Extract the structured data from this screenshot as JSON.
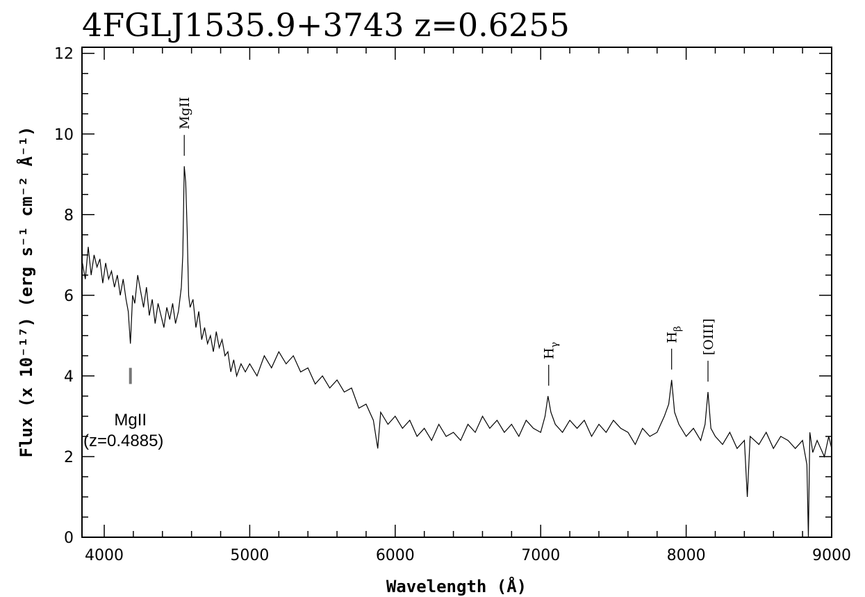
{
  "chart_data": {
    "type": "line",
    "title": "4FGLJ1535.9+3743 z=0.6255",
    "xlabel": "Wavelength (Å)",
    "ylabel": "Flux (x 10⁻¹⁷) (erg s⁻¹ cm⁻² Å⁻¹)",
    "color": "#000000",
    "x": [
      3850,
      3870,
      3890,
      3910,
      3930,
      3950,
      3970,
      3990,
      4010,
      4030,
      4050,
      4070,
      4090,
      4110,
      4130,
      4150,
      4165,
      4180,
      4195,
      4210,
      4230,
      4250,
      4270,
      4290,
      4310,
      4330,
      4350,
      4370,
      4390,
      4410,
      4430,
      4450,
      4470,
      4490,
      4510,
      4530,
      4540,
      4550,
      4560,
      4570,
      4580,
      4590,
      4610,
      4630,
      4650,
      4670,
      4690,
      4710,
      4730,
      4750,
      4770,
      4790,
      4810,
      4830,
      4850,
      4870,
      4890,
      4910,
      4940,
      4970,
      5000,
      5050,
      5100,
      5150,
      5200,
      5250,
      5300,
      5350,
      5400,
      5450,
      5500,
      5550,
      5600,
      5650,
      5700,
      5750,
      5800,
      5850,
      5880,
      5900,
      5950,
      6000,
      6050,
      6100,
      6150,
      6200,
      6250,
      6300,
      6350,
      6400,
      6450,
      6500,
      6550,
      6600,
      6650,
      6700,
      6750,
      6800,
      6850,
      6900,
      6950,
      7000,
      7030,
      7050,
      7070,
      7100,
      7150,
      7200,
      7250,
      7300,
      7350,
      7400,
      7450,
      7500,
      7550,
      7600,
      7650,
      7700,
      7750,
      7800,
      7850,
      7880,
      7900,
      7920,
      7950,
      8000,
      8050,
      8100,
      8130,
      8150,
      8170,
      8200,
      8250,
      8300,
      8350,
      8400,
      8420,
      8440,
      8500,
      8550,
      8600,
      8650,
      8700,
      8750,
      8800,
      8830,
      8840,
      8850,
      8870,
      8900,
      8950,
      8980,
      9000
    ],
    "values": [
      6.8,
      6.4,
      7.2,
      6.5,
      7.0,
      6.7,
      6.9,
      6.3,
      6.8,
      6.4,
      6.6,
      6.2,
      6.5,
      6.0,
      6.4,
      5.9,
      5.6,
      4.8,
      6.0,
      5.8,
      6.5,
      6.1,
      5.7,
      6.2,
      5.5,
      5.9,
      5.3,
      5.8,
      5.5,
      5.2,
      5.7,
      5.4,
      5.8,
      5.3,
      5.6,
      6.2,
      7.0,
      9.2,
      8.8,
      7.6,
      6.0,
      5.7,
      5.9,
      5.2,
      5.6,
      4.9,
      5.2,
      4.8,
      5.0,
      4.6,
      5.1,
      4.7,
      4.9,
      4.5,
      4.6,
      4.1,
      4.4,
      4.0,
      4.3,
      4.1,
      4.3,
      4.0,
      4.5,
      4.2,
      4.6,
      4.3,
      4.5,
      4.1,
      4.2,
      3.8,
      4.0,
      3.7,
      3.9,
      3.6,
      3.7,
      3.2,
      3.3,
      2.9,
      2.2,
      3.1,
      2.8,
      3.0,
      2.7,
      2.9,
      2.5,
      2.7,
      2.4,
      2.8,
      2.5,
      2.6,
      2.4,
      2.8,
      2.6,
      3.0,
      2.7,
      2.9,
      2.6,
      2.8,
      2.5,
      2.9,
      2.7,
      2.6,
      3.0,
      3.5,
      3.1,
      2.8,
      2.6,
      2.9,
      2.7,
      2.9,
      2.5,
      2.8,
      2.6,
      2.9,
      2.7,
      2.6,
      2.3,
      2.7,
      2.5,
      2.6,
      3.0,
      3.3,
      3.9,
      3.1,
      2.8,
      2.5,
      2.7,
      2.4,
      2.8,
      3.6,
      2.7,
      2.5,
      2.3,
      2.6,
      2.2,
      2.4,
      1.0,
      2.5,
      2.3,
      2.6,
      2.2,
      2.5,
      2.4,
      2.2,
      2.4,
      1.8,
      0.0,
      2.6,
      2.1,
      2.4,
      2.0,
      2.5,
      2.2
    ],
    "xlim": [
      3847,
      9000
    ],
    "ylim": [
      0,
      12.15
    ],
    "xticks": [
      4000,
      5000,
      6000,
      7000,
      8000,
      9000
    ],
    "yticks": [
      0,
      2,
      4,
      6,
      8,
      10,
      12
    ],
    "xminorticks": [
      4200,
      4400,
      4600,
      4800,
      5200,
      5400,
      5600,
      5800,
      6200,
      6400,
      6600,
      6800,
      7200,
      7400,
      7600,
      7800,
      8200,
      8400,
      8600,
      8800
    ],
    "yminorticks": [
      0.5,
      1,
      1.5,
      2.5,
      3,
      3.5,
      4.5,
      5,
      5.5,
      6.5,
      7,
      7.5,
      8.5,
      9,
      9.5,
      10.5,
      11,
      11.5
    ],
    "emission_lines": [
      {
        "x": 4550,
        "text": "MgII"
      },
      {
        "x": 7055,
        "text": "H",
        "sub": "γ"
      },
      {
        "x": 7900,
        "text": "H",
        "sub": "β"
      },
      {
        "x": 8150,
        "text": "[OIII]"
      }
    ],
    "absorption_lines": [
      {
        "x": 4180,
        "text": "MgII",
        "note": "(z=0.4885)"
      }
    ]
  }
}
